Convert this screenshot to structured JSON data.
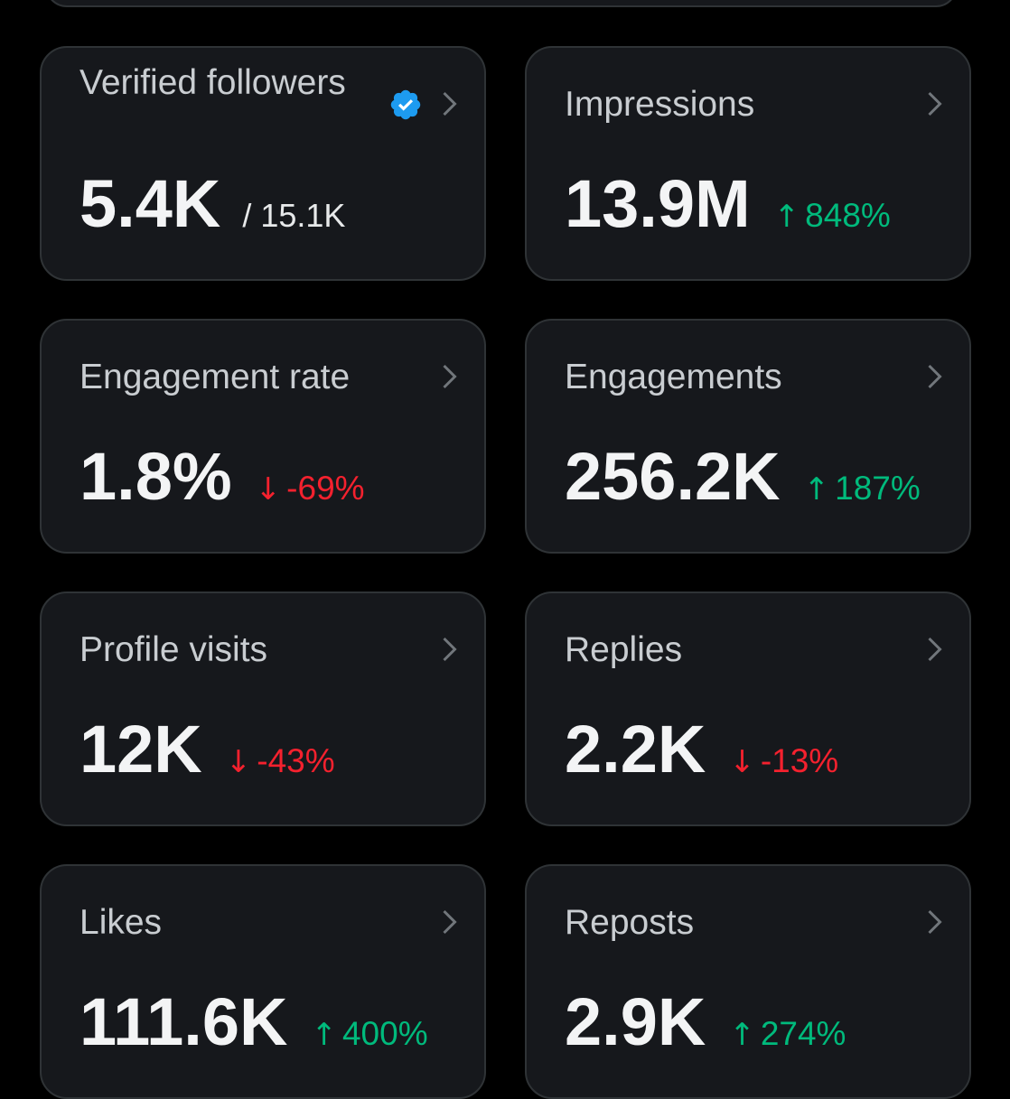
{
  "colors": {
    "background": "#000000",
    "card": "#16181c",
    "card_border": "#2f3336",
    "up": "#00ba7c",
    "down": "#f4212e",
    "verified": "#1d9bf0"
  },
  "cards": [
    {
      "title": "Verified followers",
      "icon": "verified-badge-icon",
      "value": "5.4K",
      "sub_value": "/ 15.1K"
    },
    {
      "title": "Impressions",
      "value": "13.9M",
      "delta_arrow": "↑",
      "delta": "848%",
      "direction": "up"
    },
    {
      "title": "Engagement rate",
      "value": "1.8%",
      "delta_arrow": "↓",
      "delta": "-69%",
      "direction": "down"
    },
    {
      "title": "Engagements",
      "value": "256.2K",
      "delta_arrow": "↑",
      "delta": "187%",
      "direction": "up"
    },
    {
      "title": "Profile visits",
      "value": "12K",
      "delta_arrow": "↓",
      "delta": "-43%",
      "direction": "down"
    },
    {
      "title": "Replies",
      "value": "2.2K",
      "delta_arrow": "↓",
      "delta": "-13%",
      "direction": "down"
    },
    {
      "title": "Likes",
      "value": "111.6K",
      "delta_arrow": "↑",
      "delta": "400%",
      "direction": "up"
    },
    {
      "title": "Reposts",
      "value": "2.9K",
      "delta_arrow": "↑",
      "delta": "274%",
      "direction": "up"
    }
  ]
}
